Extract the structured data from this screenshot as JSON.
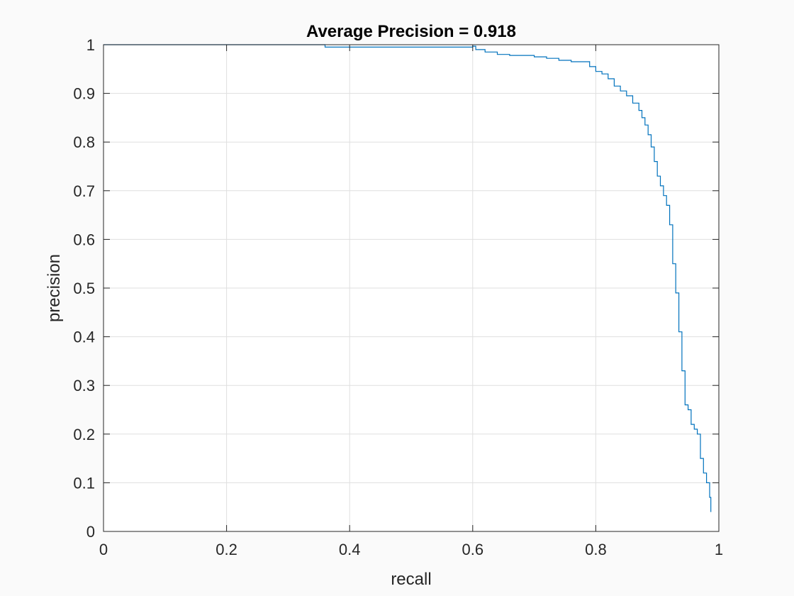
{
  "chart_data": {
    "type": "line",
    "title": "Average Precision = 0.918",
    "xlabel": "recall",
    "ylabel": "precision",
    "xlim": [
      0,
      1
    ],
    "ylim": [
      0,
      1
    ],
    "xticks": [
      0,
      0.2,
      0.4,
      0.6,
      0.8,
      1
    ],
    "xtick_labels": [
      "0",
      "0.2",
      "0.4",
      "0.6",
      "0.8",
      "1"
    ],
    "yticks": [
      0,
      0.1,
      0.2,
      0.3,
      0.4,
      0.5,
      0.6,
      0.7,
      0.8,
      0.9,
      1
    ],
    "ytick_labels": [
      "0",
      "0.1",
      "0.2",
      "0.3",
      "0.4",
      "0.5",
      "0.6",
      "0.7",
      "0.8",
      "0.9",
      "1"
    ],
    "grid": true,
    "series": [
      {
        "color": "#0072bd",
        "x": [
          0,
          0.36,
          0.36,
          0.6,
          0.605,
          0.62,
          0.64,
          0.66,
          0.68,
          0.7,
          0.72,
          0.74,
          0.76,
          0.79,
          0.79,
          0.8,
          0.81,
          0.82,
          0.83,
          0.84,
          0.85,
          0.86,
          0.87,
          0.875,
          0.88,
          0.885,
          0.89,
          0.895,
          0.9,
          0.905,
          0.91,
          0.915,
          0.92,
          0.925,
          0.925,
          0.93,
          0.93,
          0.935,
          0.935,
          0.94,
          0.94,
          0.945,
          0.945,
          0.95,
          0.955,
          0.96,
          0.965,
          0.97,
          0.975,
          0.98,
          0.985,
          0.987
        ],
        "y": [
          1.0,
          1.0,
          0.995,
          0.997,
          0.99,
          0.985,
          0.98,
          0.978,
          0.978,
          0.975,
          0.972,
          0.968,
          0.965,
          0.966,
          0.955,
          0.945,
          0.94,
          0.93,
          0.915,
          0.905,
          0.895,
          0.88,
          0.865,
          0.85,
          0.835,
          0.815,
          0.79,
          0.76,
          0.73,
          0.71,
          0.69,
          0.67,
          0.63,
          0.57,
          0.55,
          0.53,
          0.49,
          0.47,
          0.41,
          0.4,
          0.33,
          0.32,
          0.26,
          0.25,
          0.22,
          0.21,
          0.2,
          0.15,
          0.12,
          0.1,
          0.07,
          0.04
        ]
      }
    ]
  }
}
